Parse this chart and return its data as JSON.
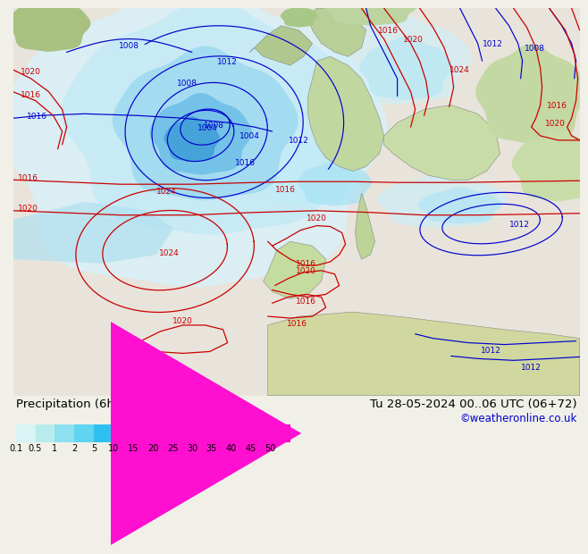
{
  "title_left": "Precipitation (6h) [mm] ECMWF",
  "title_right": "Tu 28-05-2024 00..06 UTC (06+72)",
  "credit": "©weatheronline.co.uk",
  "colorbar_values": [
    0.1,
    0.5,
    1,
    2,
    5,
    10,
    15,
    20,
    25,
    30,
    35,
    40,
    45,
    50
  ],
  "colorbar_colors": [
    "#d8f4f4",
    "#b8ecec",
    "#8ce0f0",
    "#60d4f0",
    "#30c0f0",
    "#0090d8",
    "#0060c0",
    "#0030a8",
    "#100090",
    "#340078",
    "#640080",
    "#940090",
    "#c400a0",
    "#e800b8",
    "#ff10d0"
  ],
  "bg_color": "#f0f0e8",
  "ocean_color": "#e8e8e0",
  "land_color_green": "#c8dca0",
  "land_color_gray": "#b8b8b0",
  "precip_light": "#c0ecf4",
  "precip_medium": "#90d8f0",
  "precip_dark": "#50b8e8",
  "precip_blue": "#2090d0",
  "title_color": "#000000",
  "credit_color": "#0000cc",
  "label_fontsize": 9,
  "title_fontsize": 9.5,
  "credit_fontsize": 8.5,
  "isobar_blue_color": "#0000cc",
  "isobar_red_color": "#cc0000",
  "isobar_fontsize": 6.5
}
